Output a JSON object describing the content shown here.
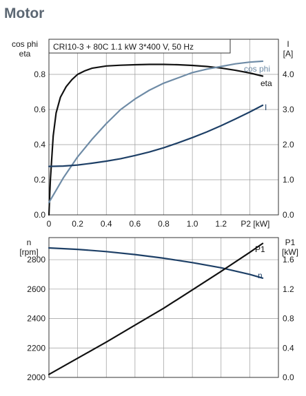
{
  "page": {
    "heading": "Motor"
  },
  "chart_data": [
    {
      "type": "line",
      "info_box": "CRI10-3 + 80C   1.1 kW   3*400 V, 50 Hz",
      "xlabel": "P2 [kW]",
      "xlim": [
        0,
        1.6
      ],
      "x_ticks": [
        "0",
        "0.2",
        "0.4",
        "0.6",
        "0.8",
        "1.0",
        "1.2",
        "P2 [kW]"
      ],
      "y_left_label_1": "cos phi",
      "y_left_label_2": "eta",
      "y_left_lim": [
        0,
        1.0
      ],
      "y_left_ticks": [
        "0.0",
        "0.2",
        "0.4",
        "0.6",
        "0.8"
      ],
      "y_right_label_1": "I",
      "y_right_label_2": "[A]",
      "y_right_lim": [
        0,
        5.0
      ],
      "y_right_ticks": [
        "0.0",
        "1.0",
        "2.0",
        "3.0",
        "4.0"
      ],
      "grid": true,
      "series": [
        {
          "name": "eta",
          "axis": "left",
          "color": "#111111",
          "x": [
            0.0,
            0.01,
            0.03,
            0.05,
            0.08,
            0.12,
            0.16,
            0.2,
            0.25,
            0.3,
            0.4,
            0.5,
            0.6,
            0.7,
            0.8,
            0.9,
            1.0,
            1.1,
            1.2,
            1.3,
            1.4,
            1.49
          ],
          "y": [
            0.0,
            0.2,
            0.45,
            0.58,
            0.67,
            0.73,
            0.77,
            0.8,
            0.82,
            0.835,
            0.848,
            0.852,
            0.855,
            0.857,
            0.857,
            0.855,
            0.851,
            0.845,
            0.836,
            0.823,
            0.808,
            0.79
          ]
        },
        {
          "name": "cos phi",
          "axis": "left",
          "color": "#6e8ba6",
          "x": [
            0.0,
            0.05,
            0.1,
            0.2,
            0.3,
            0.4,
            0.5,
            0.6,
            0.7,
            0.8,
            0.9,
            1.0,
            1.1,
            1.2,
            1.3,
            1.4,
            1.49
          ],
          "y": [
            0.07,
            0.14,
            0.21,
            0.33,
            0.43,
            0.52,
            0.6,
            0.66,
            0.71,
            0.75,
            0.78,
            0.81,
            0.83,
            0.845,
            0.86,
            0.87,
            0.875
          ]
        },
        {
          "name": "I",
          "axis": "right",
          "color": "#1d3f66",
          "x": [
            0.0,
            0.1,
            0.2,
            0.3,
            0.4,
            0.5,
            0.6,
            0.7,
            0.8,
            0.9,
            1.0,
            1.1,
            1.2,
            1.3,
            1.4,
            1.49
          ],
          "y": [
            1.38,
            1.39,
            1.42,
            1.47,
            1.53,
            1.6,
            1.69,
            1.79,
            1.91,
            2.05,
            2.2,
            2.36,
            2.54,
            2.73,
            2.93,
            3.12
          ]
        }
      ]
    },
    {
      "type": "line",
      "xlim": [
        0,
        1.6
      ],
      "y_left_label_1": "n",
      "y_left_label_2": "[rpm]",
      "y_left_lim": [
        2000,
        2950
      ],
      "y_left_ticks": [
        "2000",
        "2200",
        "2400",
        "2600",
        "2800"
      ],
      "y_right_label_1": "P1",
      "y_right_label_2": "[kW]",
      "y_right_lim": [
        0,
        1.9
      ],
      "y_right_ticks": [
        "0.0",
        "0.4",
        "0.8",
        "1.2",
        "1.6"
      ],
      "grid": true,
      "series": [
        {
          "name": "n",
          "axis": "left",
          "color": "#1d3f66",
          "x": [
            0.0,
            0.2,
            0.4,
            0.6,
            0.8,
            1.0,
            1.2,
            1.4,
            1.49
          ],
          "y": [
            2880,
            2870,
            2855,
            2835,
            2810,
            2780,
            2745,
            2700,
            2675
          ]
        },
        {
          "name": "P1",
          "axis": "right",
          "color": "#111111",
          "x": [
            0.0,
            0.2,
            0.4,
            0.6,
            0.8,
            1.0,
            1.2,
            1.4,
            1.49
          ],
          "y": [
            0.04,
            0.26,
            0.48,
            0.71,
            0.94,
            1.19,
            1.44,
            1.7,
            1.82
          ]
        }
      ]
    }
  ]
}
